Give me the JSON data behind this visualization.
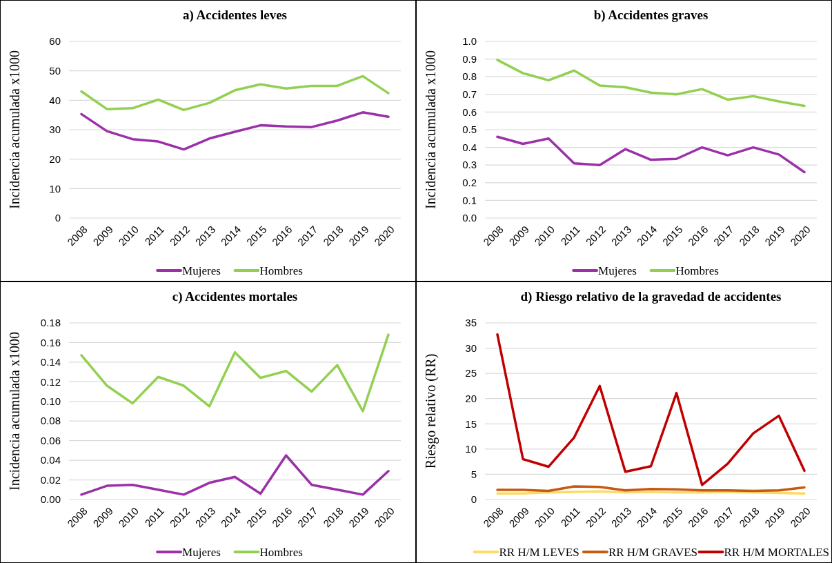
{
  "chart_data": [
    {
      "type": "line",
      "title": "a) Accidentes leves",
      "ylabel": "Incidencia acumulada x1000",
      "categories": [
        "2008",
        "2009",
        "2010",
        "2011",
        "2012",
        "2013",
        "2014",
        "2015",
        "2016",
        "2017",
        "2018",
        "2019",
        "2020"
      ],
      "ylim": [
        0,
        60
      ],
      "yticks": [
        0,
        10,
        20,
        30,
        40,
        50,
        60
      ],
      "grid": "y",
      "legend": "bottom",
      "series": [
        {
          "name": "Mujeres",
          "color": "#9b30a8",
          "values": [
            35.3,
            29.5,
            26.8,
            26.0,
            23.3,
            27.0,
            29.3,
            31.5,
            31.1,
            30.9,
            33.1,
            35.9,
            34.4
          ]
        },
        {
          "name": "Hombres",
          "color": "#92d050",
          "values": [
            43.0,
            37.0,
            37.3,
            40.2,
            36.7,
            39.1,
            43.4,
            45.4,
            44.0,
            44.9,
            44.9,
            48.2,
            42.4
          ]
        }
      ]
    },
    {
      "type": "line",
      "title": "b) Accidentes graves",
      "ylabel": "Incidencia acumulada x1000",
      "categories": [
        "2008",
        "2009",
        "2010",
        "2011",
        "2012",
        "2013",
        "2014",
        "2015",
        "2016",
        "2017",
        "2018",
        "2019",
        "2020"
      ],
      "ylim": [
        0,
        1
      ],
      "yticks": [
        {
          "value": 0,
          "label": "0.0"
        },
        0.1,
        0.2,
        0.3,
        0.4,
        0.5,
        0.6,
        0.7,
        0.8,
        0.9,
        {
          "value": 1,
          "label": "1.0"
        }
      ],
      "grid": "y",
      "legend": "bottom",
      "series": [
        {
          "name": "Mujeres",
          "color": "#9b30a8",
          "values": [
            0.46,
            0.42,
            0.45,
            0.31,
            0.3,
            0.39,
            0.33,
            0.335,
            0.4,
            0.355,
            0.4,
            0.36,
            0.26
          ]
        },
        {
          "name": "Hombres",
          "color": "#92d050",
          "values": [
            0.895,
            0.82,
            0.78,
            0.835,
            0.75,
            0.74,
            0.71,
            0.7,
            0.73,
            0.67,
            0.69,
            0.66,
            0.635
          ]
        }
      ]
    },
    {
      "type": "line",
      "title": "c) Accidentes mortales",
      "ylabel": "Incidencia acumulada x1000",
      "categories": [
        "2008",
        "2009",
        "2010",
        "2011",
        "2012",
        "2013",
        "2014",
        "2015",
        "2016",
        "2017",
        "2018",
        "2019",
        "2020"
      ],
      "ylim": [
        0,
        0.18
      ],
      "yticks": [
        {
          "value": 0,
          "label": "0.00"
        },
        0.02,
        0.04,
        0.06,
        0.08,
        {
          "value": 0.1,
          "label": "0.10"
        },
        0.12,
        0.14,
        0.16,
        0.18
      ],
      "grid": "y",
      "legend": "bottom",
      "series": [
        {
          "name": "Mujeres",
          "color": "#9b30a8",
          "values": [
            0.005,
            0.014,
            0.015,
            0.01,
            0.005,
            0.017,
            0.023,
            0.006,
            0.045,
            0.015,
            0.01,
            0.005,
            0.029
          ]
        },
        {
          "name": "Hombres",
          "color": "#92d050",
          "values": [
            0.147,
            0.116,
            0.098,
            0.125,
            0.116,
            0.095,
            0.15,
            0.124,
            0.131,
            0.11,
            0.137,
            0.09,
            0.168
          ]
        }
      ]
    },
    {
      "type": "line",
      "title": "d) Riesgo relativo de la gravedad de accidentes",
      "ylabel": "Riesgo relativo (RR)",
      "categories": [
        "2008",
        "2009",
        "2010",
        "2011",
        "2012",
        "2013",
        "2014",
        "2015",
        "2016",
        "2017",
        "2018",
        "2019",
        "2020"
      ],
      "ylim": [
        0,
        35
      ],
      "yticks": [
        0,
        5,
        10,
        15,
        20,
        25,
        30,
        35
      ],
      "grid": "y",
      "legend": "bottom",
      "series": [
        {
          "name": "RR H/M LEVES",
          "color": "#ffd966",
          "values": [
            1.2,
            1.2,
            1.4,
            1.5,
            1.6,
            1.4,
            1.5,
            1.4,
            1.4,
            1.5,
            1.4,
            1.3,
            1.2
          ]
        },
        {
          "name": "RR H/M GRAVES",
          "color": "#c55a11",
          "values": [
            1.9,
            1.9,
            1.7,
            2.6,
            2.5,
            1.8,
            2.1,
            2.0,
            1.8,
            1.8,
            1.7,
            1.8,
            2.4
          ]
        },
        {
          "name": "RR H/M MORTALES",
          "color": "#c00000",
          "values": [
            32.7,
            8.0,
            6.5,
            12.3,
            22.5,
            5.5,
            6.6,
            21.1,
            2.9,
            7.1,
            13.1,
            16.6,
            5.7
          ]
        }
      ]
    }
  ]
}
